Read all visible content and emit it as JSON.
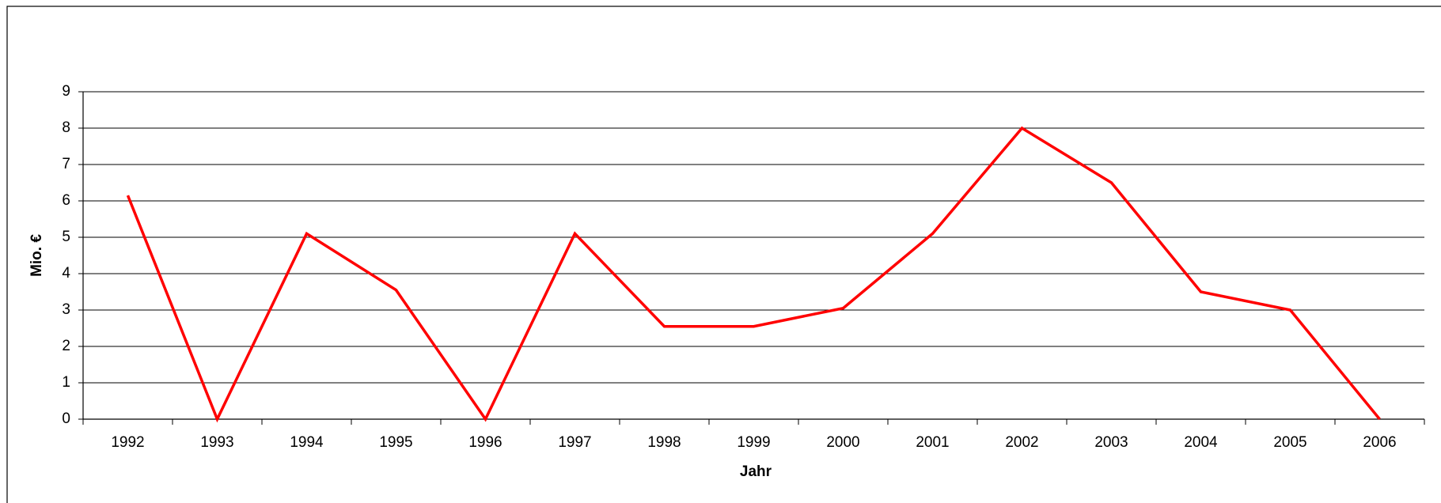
{
  "chart_data": {
    "type": "line",
    "x_label": "Jahr",
    "y_label": "Mio. €",
    "categories": [
      "1992",
      "1993",
      "1994",
      "1995",
      "1996",
      "1997",
      "1998",
      "1999",
      "2000",
      "2001",
      "2002",
      "2003",
      "2004",
      "2005",
      "2006"
    ],
    "series": [
      {
        "color": "#ff0000",
        "values": [
          6.15,
          0,
          5.1,
          3.55,
          0,
          5.1,
          2.55,
          2.55,
          3.05,
          5.1,
          8.0,
          6.5,
          3.5,
          3.0,
          0
        ]
      }
    ],
    "ylim": [
      0,
      9
    ],
    "yticks": [
      0,
      1,
      2,
      3,
      4,
      5,
      6,
      7,
      8,
      9
    ],
    "grid": true
  }
}
